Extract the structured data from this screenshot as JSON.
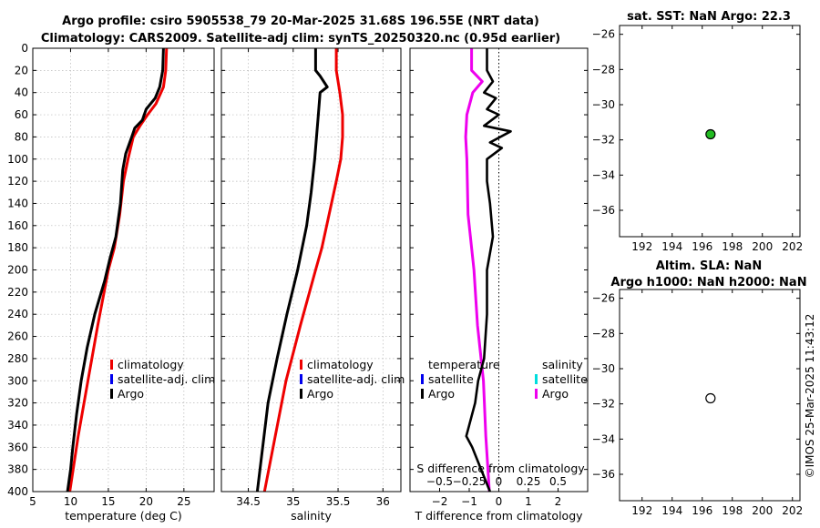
{
  "titles": {
    "main_line1": "Argo profile: csiro 5905538_79 20-Mar-2025 31.68S 196.55E (NRT data)",
    "main_line2": "Climatology: CARS2009. Satellite-adj clim: synTS_20250320.nc (0.95d earlier)",
    "sst": "sat. SST: NaN Argo: 22.3",
    "sla_line1": "Altim. SLA: NaN",
    "sla_line2": "Argo h1000: NaN h2000: NaN",
    "credit": "©IMOS 25-Mar-2025 11:43:12"
  },
  "colors": {
    "climatology": "#ee0000",
    "satellite_clim": "#0000ee",
    "argo": "#000000",
    "t_diff": "#000000",
    "s_diff": "#ee00ee",
    "s_satellite": "#00dddd",
    "sst_marker": "#22bb22"
  },
  "chart_data": [
    {
      "type": "line",
      "id": "temp",
      "xlabel": "temperature (deg C)",
      "ylabel": "",
      "xlim": [
        5,
        29
      ],
      "ylim": [
        400,
        0
      ],
      "xticks": [
        5,
        10,
        15,
        20,
        25
      ],
      "yticks": [
        0,
        20,
        40,
        60,
        80,
        100,
        120,
        140,
        160,
        180,
        200,
        220,
        240,
        260,
        280,
        300,
        320,
        340,
        360,
        380,
        400
      ],
      "grid": true,
      "legend": {
        "position": "bottom-right",
        "entries": [
          "climatology",
          "satellite-adj. clim",
          "Argo"
        ]
      },
      "series": [
        {
          "name": "climatology",
          "color_key": "climatology",
          "depth": [
            0,
            20,
            35,
            50,
            60,
            70,
            80,
            100,
            120,
            150,
            180,
            200,
            250,
            300,
            350,
            400
          ],
          "values": [
            22.7,
            22.6,
            22.3,
            21.3,
            20.2,
            19.2,
            18.3,
            17.6,
            17.0,
            16.5,
            15.8,
            15.0,
            13.6,
            12.3,
            11.0,
            9.9
          ]
        },
        {
          "name": "satellite-adj. clim",
          "color_key": "satellite_clim",
          "depth": [],
          "values": []
        },
        {
          "name": "Argo",
          "color_key": "argo",
          "depth": [
            0,
            20,
            35,
            45,
            55,
            65,
            72,
            80,
            95,
            110,
            140,
            170,
            190,
            210,
            240,
            270,
            300,
            330,
            360,
            380,
            400
          ],
          "values": [
            22.3,
            22.2,
            21.8,
            21.2,
            20.0,
            19.5,
            18.5,
            18.1,
            17.3,
            16.9,
            16.6,
            16.0,
            15.2,
            14.5,
            13.2,
            12.2,
            11.4,
            10.8,
            10.3,
            10.0,
            9.6
          ]
        }
      ]
    },
    {
      "type": "line",
      "id": "sal",
      "xlabel": "salinity",
      "ylabel": "",
      "xlim": [
        34.2,
        36.2
      ],
      "ylim": [
        400,
        0
      ],
      "xticks": [
        34.5,
        35,
        35.5,
        36
      ],
      "grid": true,
      "legend": {
        "position": "bottom-right",
        "entries": [
          "climatology",
          "satellite-adj. clim",
          "Argo"
        ]
      },
      "series": [
        {
          "name": "climatology",
          "color_key": "climatology",
          "depth": [
            0,
            20,
            40,
            60,
            80,
            100,
            120,
            150,
            180,
            200,
            250,
            300,
            350,
            400
          ],
          "values": [
            35.48,
            35.48,
            35.52,
            35.55,
            35.55,
            35.53,
            35.48,
            35.4,
            35.32,
            35.25,
            35.08,
            34.92,
            34.8,
            34.68
          ]
        },
        {
          "name": "satellite-adj. clim",
          "color_key": "satellite_clim",
          "depth": [],
          "values": []
        },
        {
          "name": "Argo",
          "color_key": "argo",
          "depth": [
            0,
            20,
            25,
            35,
            40,
            60,
            80,
            100,
            130,
            160,
            200,
            240,
            280,
            320,
            360,
            400
          ],
          "values": [
            35.25,
            35.25,
            35.3,
            35.38,
            35.3,
            35.28,
            35.26,
            35.24,
            35.2,
            35.15,
            35.05,
            34.93,
            34.82,
            34.72,
            34.66,
            34.6
          ]
        }
      ]
    },
    {
      "type": "line",
      "id": "diff",
      "xlabel": "T difference from climatology",
      "top_xlabel": "S difference from climatology",
      "xlim": [
        -3,
        3
      ],
      "top_xlim": [
        -0.75,
        0.75
      ],
      "ylim": [
        400,
        0
      ],
      "xticks": [
        -2,
        -1,
        0,
        1,
        2
      ],
      "top_xticks": [
        -0.5,
        -0.25,
        0,
        0.25,
        0.5
      ],
      "grid": false,
      "legend_t": {
        "title": "temperature",
        "entries": [
          "satellite",
          "Argo"
        ]
      },
      "legend_s": {
        "title": "salinity",
        "entries": [
          "satellite",
          "Argo"
        ]
      },
      "series": [
        {
          "name": "T Argo - climatology",
          "color_key": "t_diff",
          "depth": [
            0,
            20,
            30,
            40,
            45,
            55,
            60,
            70,
            75,
            85,
            90,
            100,
            120,
            140,
            170,
            200,
            240,
            280,
            300,
            320,
            350,
            360,
            380,
            400
          ],
          "values": [
            -0.4,
            -0.4,
            -0.2,
            -0.5,
            -0.1,
            -0.4,
            0.0,
            -0.5,
            0.4,
            -0.3,
            0.1,
            -0.4,
            -0.4,
            -0.3,
            -0.2,
            -0.4,
            -0.4,
            -0.5,
            -0.7,
            -0.8,
            -1.1,
            -0.9,
            -0.6,
            -0.3
          ]
        },
        {
          "name": "S Argo - climatology",
          "color_key": "s_diff",
          "depth": [
            0,
            20,
            30,
            40,
            60,
            80,
            100,
            150,
            200,
            250,
            300,
            350,
            400
          ],
          "values": [
            -0.23,
            -0.23,
            -0.14,
            -0.22,
            -0.27,
            -0.28,
            -0.27,
            -0.26,
            -0.21,
            -0.18,
            -0.13,
            -0.11,
            -0.08
          ]
        }
      ]
    },
    {
      "type": "scatter",
      "id": "sst_map",
      "xlim": [
        190.5,
        202.5
      ],
      "ylim": [
        -37.5,
        -25.5
      ],
      "xticks": [
        192,
        194,
        196,
        198,
        200,
        202
      ],
      "yticks": [
        -26,
        -28,
        -30,
        -32,
        -34,
        -36
      ],
      "points": [
        {
          "x": 196.55,
          "y": -31.68,
          "filled": true
        }
      ]
    },
    {
      "type": "scatter",
      "id": "sla_map",
      "xlim": [
        190.5,
        202.5
      ],
      "ylim": [
        -37.5,
        -25.5
      ],
      "xticks": [
        192,
        194,
        196,
        198,
        200,
        202
      ],
      "yticks": [
        -26,
        -28,
        -30,
        -32,
        -34,
        -36
      ],
      "points": [
        {
          "x": 196.55,
          "y": -31.68,
          "filled": false
        }
      ]
    }
  ]
}
